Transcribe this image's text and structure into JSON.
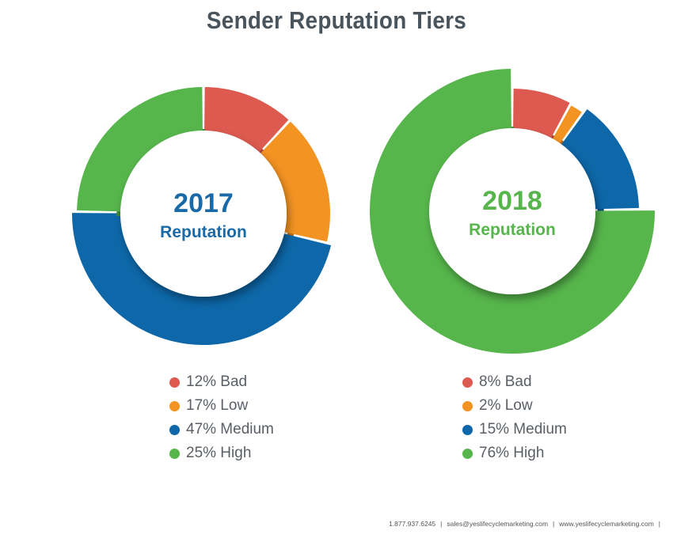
{
  "title": "Sender Reputation Tiers",
  "colors": {
    "Bad": "#dd5a50",
    "Low": "#f39322",
    "Medium": "#0d67a8",
    "High": "#56b54b"
  },
  "chart_data": [
    {
      "type": "pie",
      "year": "2017",
      "center_label": "Reputation",
      "center_color": "#1a6aa8",
      "categories": [
        "Bad",
        "Low",
        "Medium",
        "High"
      ],
      "values": [
        12,
        17,
        47,
        25
      ],
      "legend": [
        "12% Bad",
        "17% Low",
        "47% Medium",
        "25% High"
      ]
    },
    {
      "type": "pie",
      "year": "2018",
      "center_label": "Reputation",
      "center_color": "#56b54b",
      "categories": [
        "Bad",
        "Low",
        "Medium",
        "High"
      ],
      "values": [
        8,
        2,
        15,
        76
      ],
      "legend": [
        "8% Bad",
        "2% Low",
        "15% Medium",
        "76% High"
      ]
    }
  ],
  "footer": {
    "phone": "1.877.937.6245",
    "email": "sales@yeslifecyclemarketing.com",
    "website": "www.yeslifecyclemarketing.com",
    "separator": "|"
  }
}
